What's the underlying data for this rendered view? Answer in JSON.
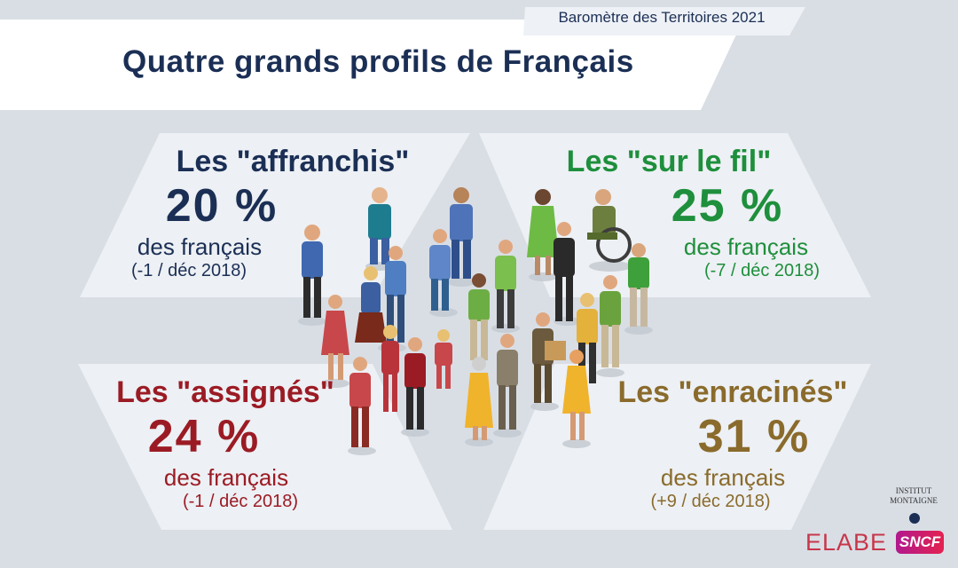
{
  "header": {
    "barometre": "Baromètre des Territoires 2021",
    "title": "Quatre grands profils de Français"
  },
  "profiles": [
    {
      "name": "Les \"affranchis\"",
      "percent": "20 %",
      "subtitle": "des français",
      "delta": "(-1 / déc 2018)",
      "color": "#1b2f55"
    },
    {
      "name": "Les \"sur le fil\"",
      "percent": "25 %",
      "subtitle": "des français",
      "delta": "(-7 / déc 2018)",
      "color": "#1e8f3c"
    },
    {
      "name": "Les \"assignés\"",
      "percent": "24 %",
      "subtitle": "des français",
      "delta": "(-1 / déc 2018)",
      "color": "#9b1b24"
    },
    {
      "name": "Les \"enracinés\"",
      "percent": "31 %",
      "subtitle": "des français",
      "delta": "(+9 / déc 2018)",
      "color": "#8a6b2c"
    }
  ],
  "logos": {
    "institut_line1": "INSTITUT",
    "institut_line2": "MONTAIGNE",
    "elabe": "ELABE",
    "sncf": "SNCF"
  },
  "illustration": "crowd-of-people"
}
